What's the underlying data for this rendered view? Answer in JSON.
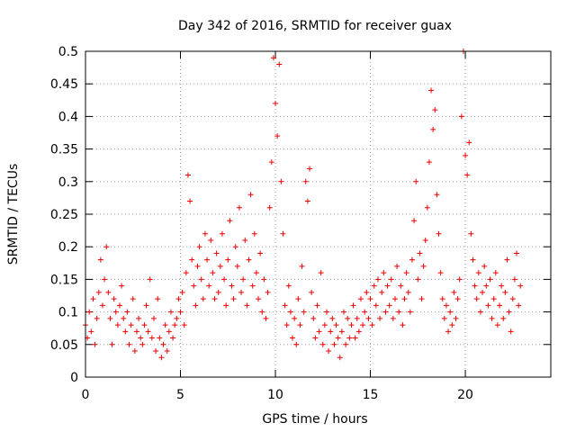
{
  "chart_data": {
    "type": "scatter",
    "title": "Day 342 of 2016, SRMTID for receiver guax",
    "xlabel": "GPS time / hours",
    "ylabel": "SRMTID / TECUs",
    "xlim": [
      0,
      24.5
    ],
    "ylim": [
      0,
      0.5
    ],
    "xticks": [
      0,
      5,
      10,
      15,
      20
    ],
    "xtick_labels": [
      "0",
      "5",
      "10",
      "15",
      "20"
    ],
    "yticks": [
      0,
      0.05,
      0.1,
      0.15,
      0.2,
      0.25,
      0.3,
      0.35,
      0.4,
      0.45,
      0.5
    ],
    "ytick_labels": [
      "0",
      "0.05",
      "0.1",
      "0.15",
      "0.2",
      "0.25",
      "0.3",
      "0.35",
      "0.4",
      "0.45",
      "0.5"
    ],
    "grid": true,
    "marker": "+",
    "series": [
      {
        "name": "SRMTID",
        "color": "#ee0000",
        "points": [
          [
            0.0,
            0.08
          ],
          [
            0.1,
            0.06
          ],
          [
            0.2,
            0.1
          ],
          [
            0.3,
            0.07
          ],
          [
            0.4,
            0.12
          ],
          [
            0.5,
            0.05
          ],
          [
            0.6,
            0.09
          ],
          [
            0.7,
            0.13
          ],
          [
            0.8,
            0.18
          ],
          [
            0.9,
            0.11
          ],
          [
            1.0,
            0.15
          ],
          [
            1.1,
            0.2
          ],
          [
            1.2,
            0.13
          ],
          [
            1.3,
            0.09
          ],
          [
            1.4,
            0.05
          ],
          [
            1.5,
            0.12
          ],
          [
            1.6,
            0.1
          ],
          [
            1.7,
            0.08
          ],
          [
            1.8,
            0.11
          ],
          [
            1.9,
            0.14
          ],
          [
            2.0,
            0.09
          ],
          [
            2.1,
            0.07
          ],
          [
            2.2,
            0.1
          ],
          [
            2.3,
            0.05
          ],
          [
            2.4,
            0.08
          ],
          [
            2.5,
            0.12
          ],
          [
            2.6,
            0.04
          ],
          [
            2.7,
            0.07
          ],
          [
            2.8,
            0.09
          ],
          [
            2.9,
            0.06
          ],
          [
            3.0,
            0.05
          ],
          [
            3.1,
            0.08
          ],
          [
            3.2,
            0.11
          ],
          [
            3.3,
            0.07
          ],
          [
            3.4,
            0.15
          ],
          [
            3.5,
            0.06
          ],
          [
            3.6,
            0.09
          ],
          [
            3.7,
            0.04
          ],
          [
            3.8,
            0.12
          ],
          [
            3.9,
            0.06
          ],
          [
            4.0,
            0.03
          ],
          [
            4.1,
            0.05
          ],
          [
            4.2,
            0.08
          ],
          [
            4.3,
            0.04
          ],
          [
            4.4,
            0.07
          ],
          [
            4.5,
            0.1
          ],
          [
            4.6,
            0.06
          ],
          [
            4.7,
            0.08
          ],
          [
            4.8,
            0.09
          ],
          [
            4.9,
            0.12
          ],
          [
            5.0,
            0.1
          ],
          [
            5.1,
            0.13
          ],
          [
            5.2,
            0.08
          ],
          [
            5.3,
            0.16
          ],
          [
            5.4,
            0.31
          ],
          [
            5.5,
            0.27
          ],
          [
            5.6,
            0.18
          ],
          [
            5.7,
            0.14
          ],
          [
            5.8,
            0.11
          ],
          [
            5.9,
            0.17
          ],
          [
            6.0,
            0.2
          ],
          [
            6.1,
            0.15
          ],
          [
            6.2,
            0.12
          ],
          [
            6.3,
            0.22
          ],
          [
            6.4,
            0.18
          ],
          [
            6.5,
            0.14
          ],
          [
            6.6,
            0.21
          ],
          [
            6.7,
            0.16
          ],
          [
            6.8,
            0.12
          ],
          [
            6.9,
            0.19
          ],
          [
            7.0,
            0.13
          ],
          [
            7.1,
            0.17
          ],
          [
            7.2,
            0.22
          ],
          [
            7.3,
            0.15
          ],
          [
            7.4,
            0.11
          ],
          [
            7.5,
            0.18
          ],
          [
            7.6,
            0.24
          ],
          [
            7.7,
            0.14
          ],
          [
            7.8,
            0.12
          ],
          [
            7.9,
            0.2
          ],
          [
            8.0,
            0.17
          ],
          [
            8.1,
            0.26
          ],
          [
            8.2,
            0.13
          ],
          [
            8.3,
            0.15
          ],
          [
            8.4,
            0.21
          ],
          [
            8.5,
            0.11
          ],
          [
            8.6,
            0.18
          ],
          [
            8.7,
            0.28
          ],
          [
            8.8,
            0.14
          ],
          [
            8.9,
            0.22
          ],
          [
            9.0,
            0.16
          ],
          [
            9.1,
            0.12
          ],
          [
            9.2,
            0.19
          ],
          [
            9.3,
            0.1
          ],
          [
            9.4,
            0.15
          ],
          [
            9.5,
            0.09
          ],
          [
            9.6,
            0.13
          ],
          [
            9.7,
            0.26
          ],
          [
            9.8,
            0.33
          ],
          [
            9.9,
            0.49
          ],
          [
            10.0,
            0.42
          ],
          [
            10.1,
            0.37
          ],
          [
            10.2,
            0.48
          ],
          [
            10.3,
            0.3
          ],
          [
            10.4,
            0.22
          ],
          [
            10.5,
            0.11
          ],
          [
            10.6,
            0.08
          ],
          [
            10.7,
            0.14
          ],
          [
            10.8,
            0.1
          ],
          [
            10.9,
            0.06
          ],
          [
            11.0,
            0.09
          ],
          [
            11.1,
            0.05
          ],
          [
            11.2,
            0.12
          ],
          [
            11.3,
            0.08
          ],
          [
            11.4,
            0.17
          ],
          [
            11.5,
            0.1
          ],
          [
            11.6,
            0.3
          ],
          [
            11.7,
            0.27
          ],
          [
            11.8,
            0.32
          ],
          [
            11.9,
            0.13
          ],
          [
            12.0,
            0.09
          ],
          [
            12.1,
            0.06
          ],
          [
            12.2,
            0.11
          ],
          [
            12.3,
            0.07
          ],
          [
            12.4,
            0.16
          ],
          [
            12.5,
            0.05
          ],
          [
            12.6,
            0.08
          ],
          [
            12.7,
            0.1
          ],
          [
            12.8,
            0.04
          ],
          [
            12.9,
            0.07
          ],
          [
            13.0,
            0.09
          ],
          [
            13.1,
            0.05
          ],
          [
            13.2,
            0.08
          ],
          [
            13.3,
            0.06
          ],
          [
            13.4,
            0.03
          ],
          [
            13.5,
            0.07
          ],
          [
            13.6,
            0.1
          ],
          [
            13.7,
            0.05
          ],
          [
            13.8,
            0.09
          ],
          [
            13.9,
            0.06
          ],
          [
            14.0,
            0.08
          ],
          [
            14.1,
            0.11
          ],
          [
            14.2,
            0.06
          ],
          [
            14.3,
            0.09
          ],
          [
            14.4,
            0.07
          ],
          [
            14.5,
            0.12
          ],
          [
            14.6,
            0.08
          ],
          [
            14.7,
            0.1
          ],
          [
            14.8,
            0.13
          ],
          [
            14.9,
            0.09
          ],
          [
            15.0,
            0.12
          ],
          [
            15.1,
            0.08
          ],
          [
            15.2,
            0.14
          ],
          [
            15.3,
            0.11
          ],
          [
            15.4,
            0.15
          ],
          [
            15.5,
            0.09
          ],
          [
            15.6,
            0.13
          ],
          [
            15.7,
            0.16
          ],
          [
            15.8,
            0.1
          ],
          [
            15.9,
            0.14
          ],
          [
            16.0,
            0.11
          ],
          [
            16.1,
            0.15
          ],
          [
            16.2,
            0.09
          ],
          [
            16.3,
            0.12
          ],
          [
            16.4,
            0.17
          ],
          [
            16.5,
            0.1
          ],
          [
            16.6,
            0.14
          ],
          [
            16.7,
            0.08
          ],
          [
            16.8,
            0.12
          ],
          [
            16.9,
            0.16
          ],
          [
            17.0,
            0.13
          ],
          [
            17.1,
            0.1
          ],
          [
            17.2,
            0.18
          ],
          [
            17.3,
            0.24
          ],
          [
            17.4,
            0.3
          ],
          [
            17.5,
            0.15
          ],
          [
            17.6,
            0.19
          ],
          [
            17.7,
            0.12
          ],
          [
            17.8,
            0.17
          ],
          [
            17.9,
            0.21
          ],
          [
            18.0,
            0.26
          ],
          [
            18.1,
            0.33
          ],
          [
            18.2,
            0.44
          ],
          [
            18.3,
            0.38
          ],
          [
            18.4,
            0.41
          ],
          [
            18.5,
            0.28
          ],
          [
            18.6,
            0.22
          ],
          [
            18.7,
            0.16
          ],
          [
            18.8,
            0.12
          ],
          [
            18.9,
            0.09
          ],
          [
            19.0,
            0.11
          ],
          [
            19.1,
            0.07
          ],
          [
            19.2,
            0.1
          ],
          [
            19.3,
            0.08
          ],
          [
            19.4,
            0.13
          ],
          [
            19.5,
            0.09
          ],
          [
            19.6,
            0.12
          ],
          [
            19.7,
            0.15
          ],
          [
            19.8,
            0.4
          ],
          [
            19.9,
            0.5
          ],
          [
            20.0,
            0.34
          ],
          [
            20.1,
            0.31
          ],
          [
            20.2,
            0.36
          ],
          [
            20.3,
            0.22
          ],
          [
            20.4,
            0.18
          ],
          [
            20.5,
            0.14
          ],
          [
            20.6,
            0.12
          ],
          [
            20.7,
            0.16
          ],
          [
            20.8,
            0.1
          ],
          [
            20.9,
            0.13
          ],
          [
            21.0,
            0.17
          ],
          [
            21.1,
            0.14
          ],
          [
            21.2,
            0.11
          ],
          [
            21.3,
            0.15
          ],
          [
            21.4,
            0.09
          ],
          [
            21.5,
            0.12
          ],
          [
            21.6,
            0.16
          ],
          [
            21.7,
            0.08
          ],
          [
            21.8,
            0.11
          ],
          [
            21.9,
            0.14
          ],
          [
            22.0,
            0.09
          ],
          [
            22.1,
            0.13
          ],
          [
            22.2,
            0.18
          ],
          [
            22.3,
            0.1
          ],
          [
            22.4,
            0.07
          ],
          [
            22.5,
            0.12
          ],
          [
            22.6,
            0.15
          ],
          [
            22.7,
            0.19
          ],
          [
            22.8,
            0.11
          ],
          [
            22.9,
            0.14
          ]
        ]
      }
    ]
  }
}
